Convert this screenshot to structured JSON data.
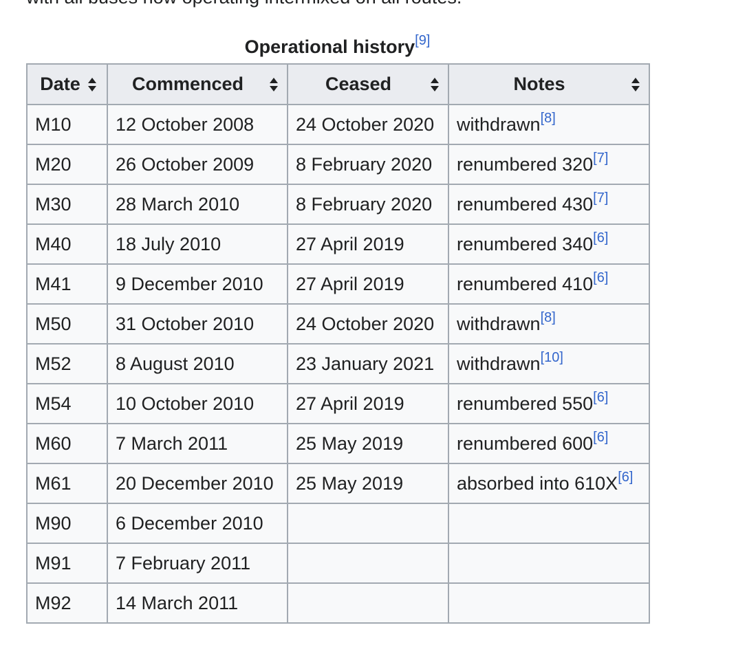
{
  "above_text": "with all buses now operating intermixed on all routes.",
  "caption": {
    "title": "Operational history",
    "ref": "[9]"
  },
  "columns": [
    {
      "label": "Date",
      "sort_icon": "sort-both-icon"
    },
    {
      "label": "Commenced",
      "sort_icon": "sort-both-icon"
    },
    {
      "label": "Ceased",
      "sort_icon": "sort-both-icon"
    },
    {
      "label": "Notes",
      "sort_icon": "sort-both-icon"
    }
  ],
  "rows": [
    {
      "route": "M10",
      "commenced": "12 October 2008",
      "ceased": "24 October 2020",
      "note": "withdrawn",
      "ref": "[8]"
    },
    {
      "route": "M20",
      "commenced": "26 October 2009",
      "ceased": "8 February 2020",
      "note": "renumbered 320",
      "ref": "[7]"
    },
    {
      "route": "M30",
      "commenced": "28 March 2010",
      "ceased": "8 February 2020",
      "note": "renumbered 430",
      "ref": "[7]"
    },
    {
      "route": "M40",
      "commenced": "18 July 2010",
      "ceased": "27 April 2019",
      "note": "renumbered 340",
      "ref": "[6]"
    },
    {
      "route": "M41",
      "commenced": "9 December 2010",
      "ceased": "27 April 2019",
      "note": "renumbered 410",
      "ref": "[6]"
    },
    {
      "route": "M50",
      "commenced": "31 October 2010",
      "ceased": "24 October 2020",
      "note": "withdrawn",
      "ref": "[8]"
    },
    {
      "route": "M52",
      "commenced": "8 August 2010",
      "ceased": "23 January 2021",
      "note": "withdrawn",
      "ref": "[10]"
    },
    {
      "route": "M54",
      "commenced": "10 October 2010",
      "ceased": "27 April 2019",
      "note": "renumbered 550",
      "ref": "[6]"
    },
    {
      "route": "M60",
      "commenced": "7 March 2011",
      "ceased": "25 May 2019",
      "note": "renumbered 600",
      "ref": "[6]"
    },
    {
      "route": "M61",
      "commenced": "20 December 2010",
      "ceased": "25 May 2019",
      "note": "absorbed into 610X",
      "ref": "[6]"
    },
    {
      "route": "M90",
      "commenced": "6 December 2010",
      "ceased": "",
      "note": "",
      "ref": ""
    },
    {
      "route": "M91",
      "commenced": "7 February 2011",
      "ceased": "",
      "note": "",
      "ref": ""
    },
    {
      "route": "M92",
      "commenced": "14 March 2011",
      "ceased": "",
      "note": "",
      "ref": ""
    }
  ],
  "colors": {
    "link": "#3366cc",
    "border": "#a2a9b1",
    "header_bg": "#eaecf0",
    "cell_bg": "#f8f9fa",
    "text": "#202122"
  }
}
